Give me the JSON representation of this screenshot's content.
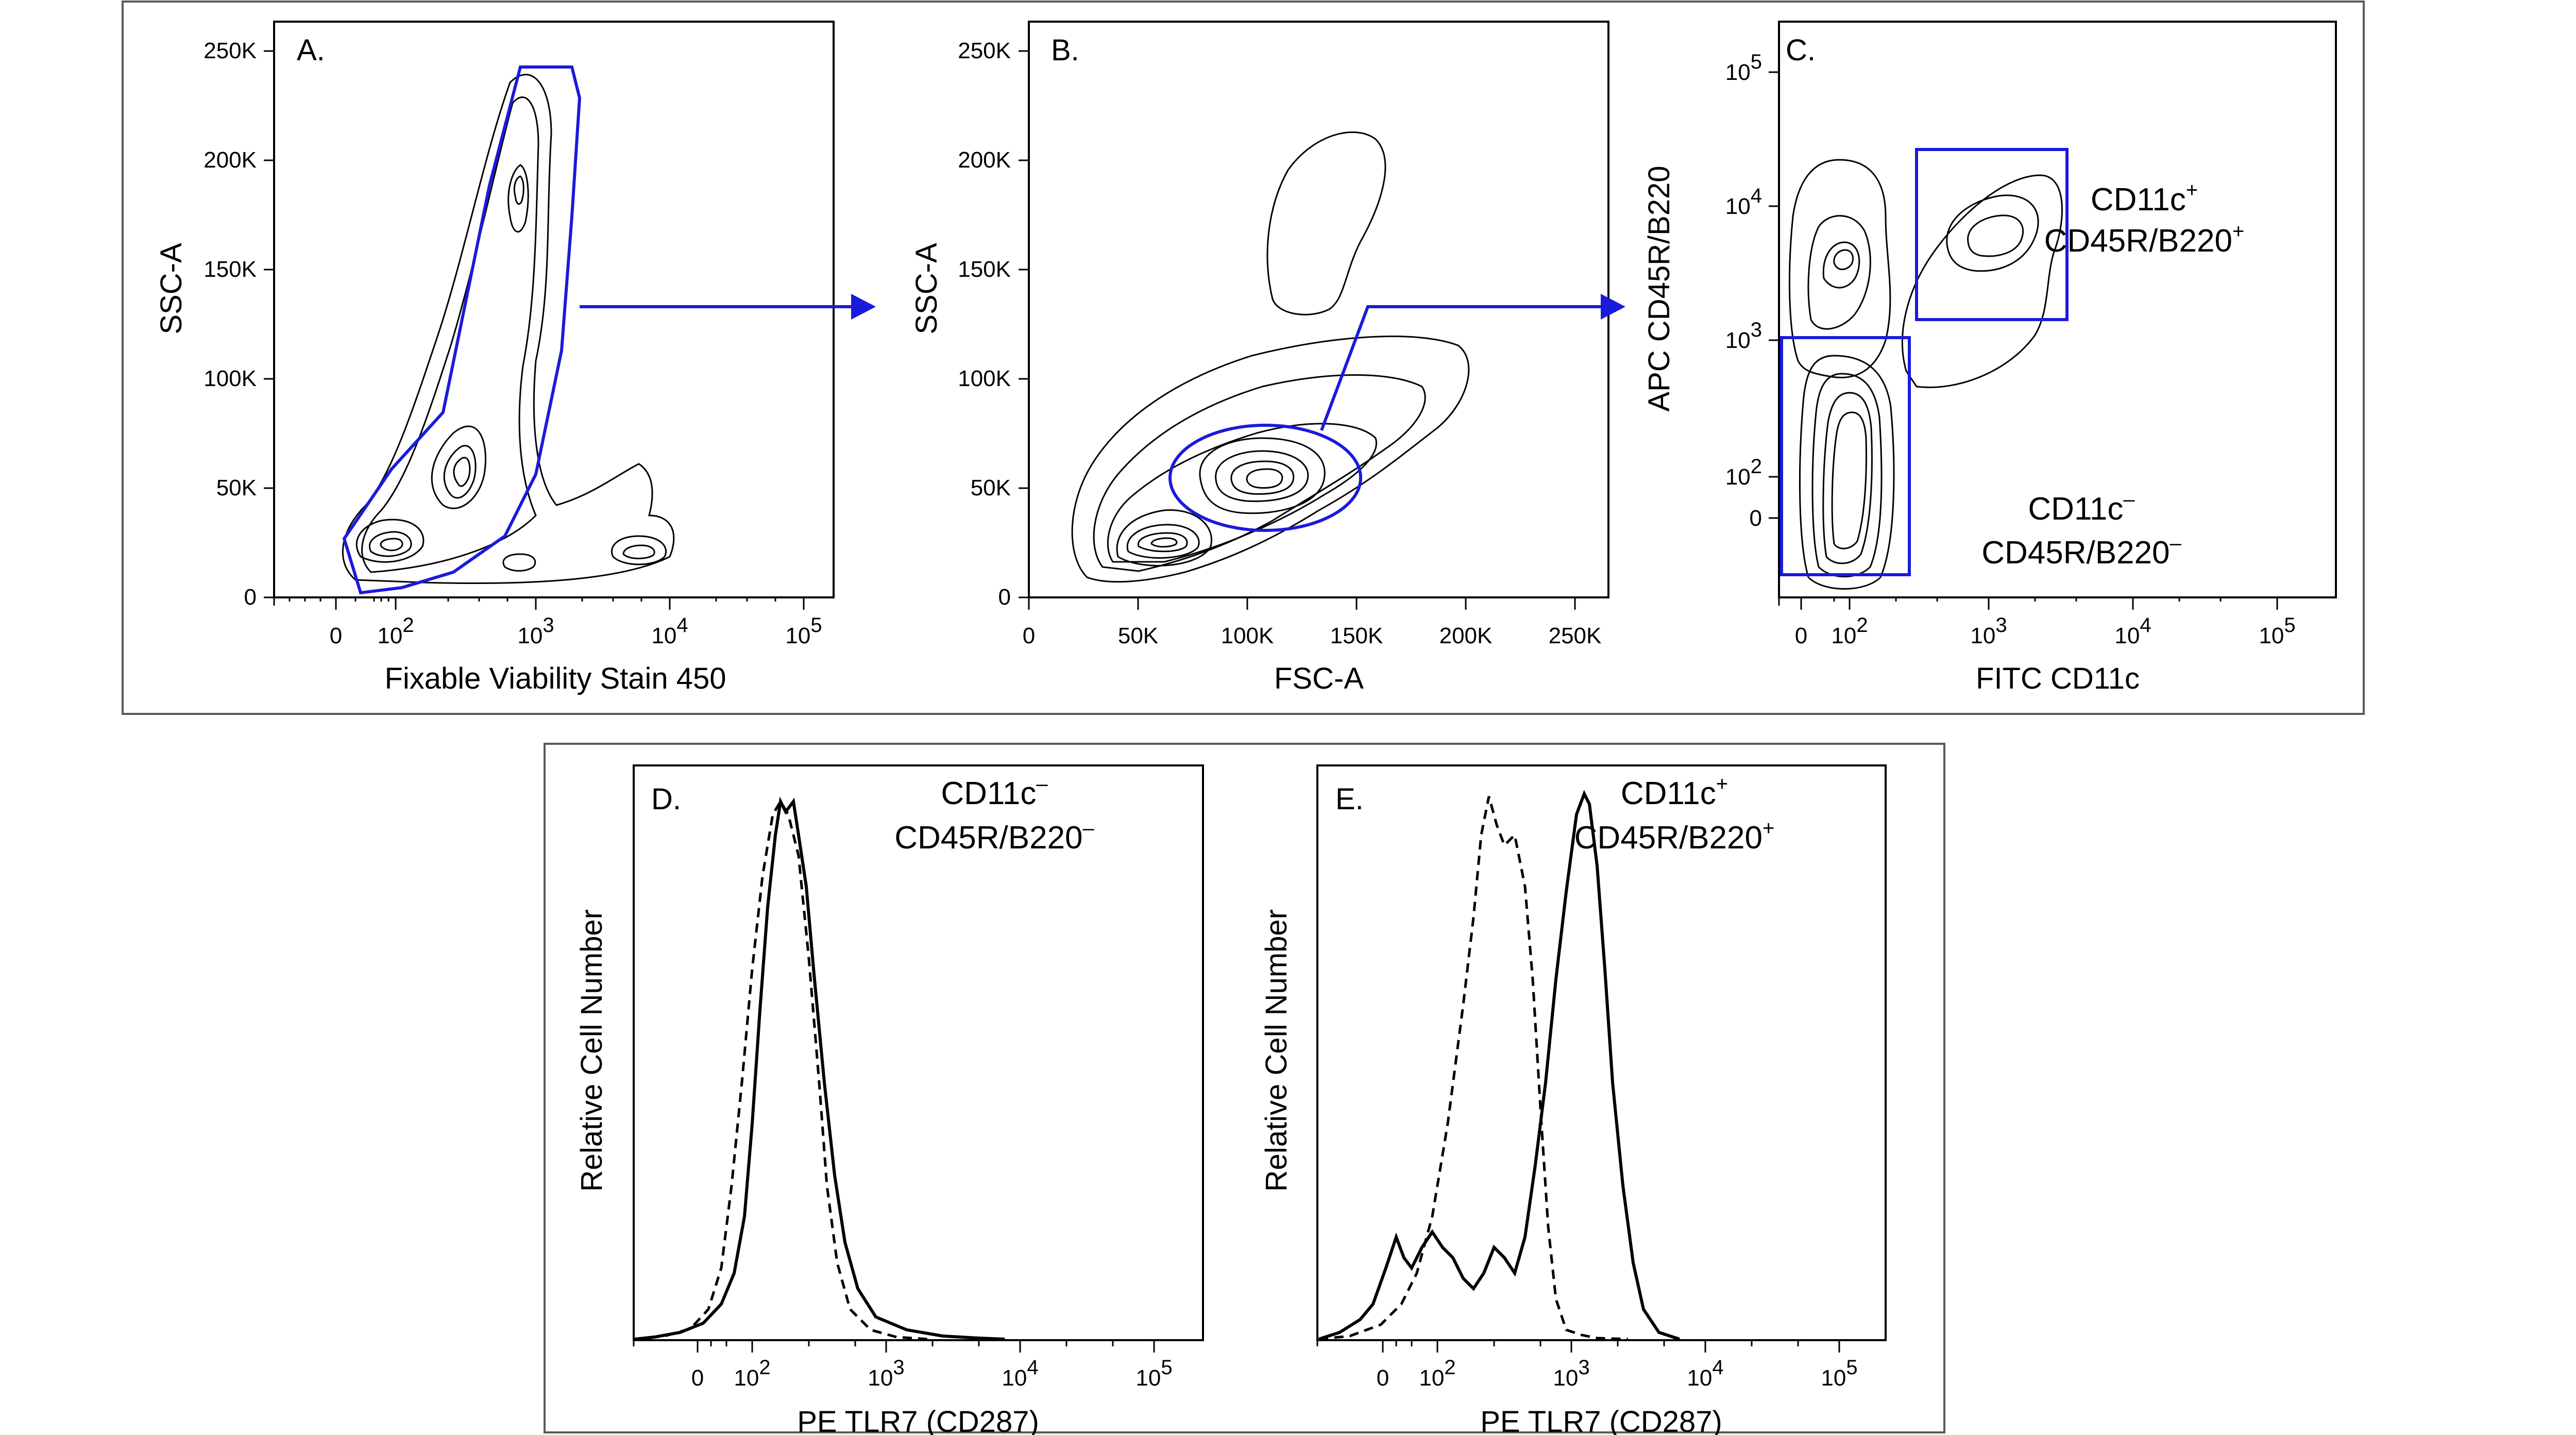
{
  "chart_data": [
    {
      "panel": "A.",
      "type": "contour",
      "xlabel": "Fixable Viability Stain 450",
      "ylabel": "SSC-A",
      "xscale": "biexponential",
      "x_tick_labels": [
        {
          "base": "0",
          "exp": ""
        },
        {
          "base": "10",
          "exp": "2"
        },
        {
          "base": "10",
          "exp": "3"
        },
        {
          "base": "10",
          "exp": "4"
        },
        {
          "base": "10",
          "exp": "5"
        }
      ],
      "y_tick_labels": [
        "0",
        "50K",
        "100K",
        "150K",
        "200K",
        "250K"
      ],
      "populations": [
        {
          "x": 100,
          "y": 25000
        },
        {
          "x": 300,
          "y": 55000
        },
        {
          "x": 700,
          "y": 190000
        },
        {
          "x": 1000,
          "y": 12000
        },
        {
          "x": 4000,
          "y": 12000
        }
      ],
      "gate": "live-cells polygon"
    },
    {
      "panel": "B.",
      "type": "contour",
      "xlabel": "FSC-A",
      "ylabel": "SSC-A",
      "x_tick_labels": [
        "0",
        "50K",
        "100K",
        "150K",
        "200K",
        "250K"
      ],
      "y_tick_labels": [
        "0",
        "50K",
        "100K",
        "150K",
        "200K",
        "250K"
      ],
      "populations": [
        {
          "x": 65000,
          "y": 28000
        },
        {
          "x": 105000,
          "y": 55000
        },
        {
          "x": 140000,
          "y": 165000
        }
      ],
      "gate": "ellipse"
    },
    {
      "panel": "C.",
      "type": "contour",
      "xlabel": "FITC CD11c",
      "ylabel": "APC CD45R/B220",
      "x_tick_labels": [
        {
          "base": "0",
          "exp": ""
        },
        {
          "base": "10",
          "exp": "2"
        },
        {
          "base": "10",
          "exp": "3"
        },
        {
          "base": "10",
          "exp": "4"
        },
        {
          "base": "10",
          "exp": "5"
        }
      ],
      "y_tick_labels": [
        {
          "base": "0",
          "exp": ""
        },
        {
          "base": "10",
          "exp": "2"
        },
        {
          "base": "10",
          "exp": "3"
        },
        {
          "base": "10",
          "exp": "4"
        },
        {
          "base": "10",
          "exp": "5"
        }
      ],
      "gates": [
        {
          "line1": {
            "base": "CD11c",
            "sign": "+"
          },
          "line2": {
            "base": "CD45R/B220",
            "sign": "+"
          }
        },
        {
          "line1": {
            "base": "CD11c",
            "sign": "–"
          },
          "line2": {
            "base": "CD45R/B220",
            "sign": "–"
          }
        }
      ]
    },
    {
      "panel": "D.",
      "type": "histogram",
      "xlabel": "PE  TLR7 (CD287)",
      "ylabel": "Relative Cell Number",
      "x_tick_labels": [
        {
          "base": "0",
          "exp": ""
        },
        {
          "base": "10",
          "exp": "2"
        },
        {
          "base": "10",
          "exp": "3"
        },
        {
          "base": "10",
          "exp": "4"
        },
        {
          "base": "10",
          "exp": "5"
        }
      ],
      "annotation": {
        "line1": {
          "base": "CD11c",
          "sign": "–"
        },
        "line2": {
          "base": "CD45R/B220",
          "sign": "–"
        }
      },
      "series": [
        {
          "style": "solid",
          "mode_x": 200
        },
        {
          "style": "dashed",
          "mode_x": 170
        }
      ]
    },
    {
      "panel": "E.",
      "type": "histogram",
      "xlabel": "PE  TLR7 (CD287)",
      "ylabel": "Relative Cell Number",
      "x_tick_labels": [
        {
          "base": "0",
          "exp": ""
        },
        {
          "base": "10",
          "exp": "2"
        },
        {
          "base": "10",
          "exp": "3"
        },
        {
          "base": "10",
          "exp": "4"
        },
        {
          "base": "10",
          "exp": "5"
        }
      ],
      "annotation": {
        "line1": {
          "base": "CD11c",
          "sign": "+"
        },
        "line2": {
          "base": "CD45R/B220",
          "sign": "+"
        }
      },
      "series": [
        {
          "style": "solid",
          "mode_x": 1100
        },
        {
          "style": "dashed",
          "mode_x": 250
        }
      ]
    }
  ],
  "colors": {
    "gate": "#1a1adb",
    "ink": "#000000",
    "frame": "#5a5a5a"
  }
}
